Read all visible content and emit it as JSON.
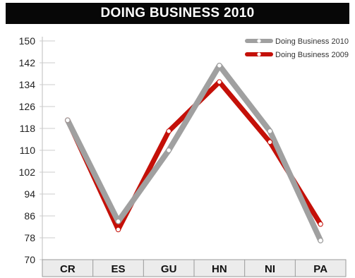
{
  "chart_data": {
    "type": "line",
    "title": "DOING BUSINESS 2010",
    "xlabel": "",
    "ylabel": "",
    "categories": [
      "CR",
      "ES",
      "GU",
      "HN",
      "NI",
      "PA"
    ],
    "ylim": [
      70,
      150
    ],
    "yticks": [
      70,
      78,
      86,
      94,
      102,
      110,
      118,
      126,
      134,
      142,
      150
    ],
    "grid": false,
    "legend_position": "top-right",
    "series": [
      {
        "name": "Doing Business 2010",
        "color": "#a0a0a0",
        "values": [
          121,
          84,
          110,
          141,
          117,
          77
        ]
      },
      {
        "name": "Doing Business 2009",
        "color": "#c41008",
        "values": [
          121,
          81,
          117,
          135,
          113,
          83
        ]
      }
    ]
  }
}
